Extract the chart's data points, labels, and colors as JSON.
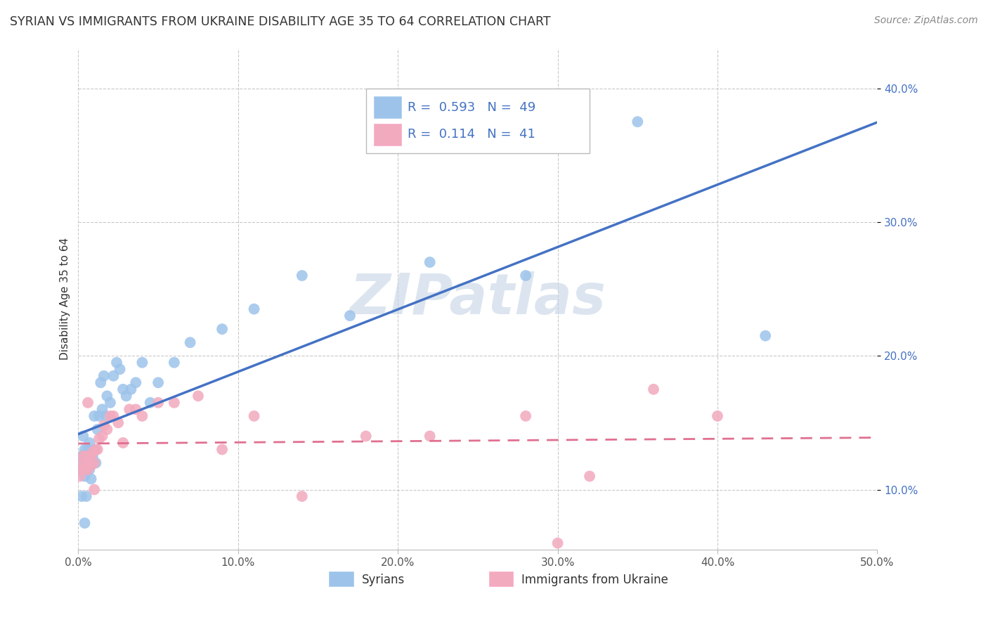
{
  "title": "SYRIAN VS IMMIGRANTS FROM UKRAINE DISABILITY AGE 35 TO 64 CORRELATION CHART",
  "source": "Source: ZipAtlas.com",
  "ylabel": "Disability Age 35 to 64",
  "xlim": [
    0.0,
    0.5
  ],
  "ylim": [
    0.055,
    0.43
  ],
  "xticks": [
    0.0,
    0.1,
    0.2,
    0.3,
    0.4,
    0.5
  ],
  "xtick_labels": [
    "0.0%",
    "10.0%",
    "20.0%",
    "30.0%",
    "40.0%",
    "50.0%"
  ],
  "yticks": [
    0.1,
    0.2,
    0.3,
    0.4
  ],
  "ytick_labels": [
    "10.0%",
    "20.0%",
    "30.0%",
    "40.0%"
  ],
  "syrian_R": 0.593,
  "syrian_N": 49,
  "ukraine_R": 0.114,
  "ukraine_N": 41,
  "syrian_color": "#9DC3EA",
  "ukraine_color": "#F2AABE",
  "syrian_line_color": "#4472C4",
  "ukraine_line_color": "#E07090",
  "watermark_color": "#C5D5E5",
  "legend_labels": [
    "Syrians",
    "Immigrants from Ukraine"
  ],
  "syrian_x": [
    0.001,
    0.002,
    0.002,
    0.003,
    0.003,
    0.004,
    0.004,
    0.005,
    0.005,
    0.005,
    0.006,
    0.006,
    0.007,
    0.007,
    0.008,
    0.008,
    0.009,
    0.01,
    0.01,
    0.011,
    0.012,
    0.013,
    0.014,
    0.015,
    0.016,
    0.017,
    0.018,
    0.02,
    0.022,
    0.024,
    0.026,
    0.028,
    0.03,
    0.033,
    0.036,
    0.04,
    0.045,
    0.05,
    0.06,
    0.07,
    0.09,
    0.11,
    0.14,
    0.17,
    0.22,
    0.28,
    0.35,
    0.43,
    0.004
  ],
  "syrian_y": [
    0.115,
    0.125,
    0.095,
    0.12,
    0.14,
    0.11,
    0.13,
    0.115,
    0.125,
    0.095,
    0.13,
    0.12,
    0.115,
    0.135,
    0.12,
    0.108,
    0.125,
    0.13,
    0.155,
    0.12,
    0.145,
    0.155,
    0.18,
    0.16,
    0.185,
    0.155,
    0.17,
    0.165,
    0.185,
    0.195,
    0.19,
    0.175,
    0.17,
    0.175,
    0.18,
    0.195,
    0.165,
    0.18,
    0.195,
    0.21,
    0.22,
    0.235,
    0.26,
    0.23,
    0.27,
    0.26,
    0.375,
    0.215,
    0.075
  ],
  "ukraine_x": [
    0.001,
    0.002,
    0.003,
    0.003,
    0.004,
    0.005,
    0.005,
    0.006,
    0.007,
    0.008,
    0.008,
    0.009,
    0.01,
    0.011,
    0.012,
    0.013,
    0.015,
    0.016,
    0.018,
    0.02,
    0.022,
    0.025,
    0.028,
    0.032,
    0.036,
    0.04,
    0.05,
    0.06,
    0.075,
    0.09,
    0.11,
    0.14,
    0.18,
    0.22,
    0.28,
    0.32,
    0.36,
    0.4,
    0.006,
    0.01,
    0.3
  ],
  "ukraine_y": [
    0.11,
    0.115,
    0.12,
    0.125,
    0.115,
    0.125,
    0.12,
    0.115,
    0.12,
    0.118,
    0.125,
    0.128,
    0.12,
    0.13,
    0.13,
    0.138,
    0.14,
    0.148,
    0.145,
    0.155,
    0.155,
    0.15,
    0.135,
    0.16,
    0.16,
    0.155,
    0.165,
    0.165,
    0.17,
    0.13,
    0.155,
    0.095,
    0.14,
    0.14,
    0.155,
    0.11,
    0.175,
    0.155,
    0.165,
    0.1,
    0.06
  ],
  "background_color": "#FFFFFF"
}
